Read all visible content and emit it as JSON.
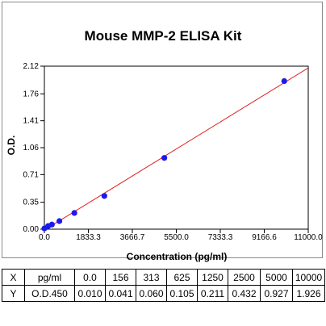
{
  "chart_data": {
    "type": "scatter",
    "title": "Mouse MMP-2 ELISA Kit",
    "xlabel": "Concentration (pg/ml)",
    "ylabel": "O.D.",
    "xlim": [
      0,
      11000
    ],
    "ylim": [
      0,
      2.12
    ],
    "x_ticks": [
      "0.0",
      "1833.3",
      "3666.7",
      "5500.0",
      "7333.3",
      "9166.6",
      "11000.0"
    ],
    "y_ticks": [
      "0.00",
      "0.35",
      "0.71",
      "1.06",
      "1.41",
      "1.76",
      "2.12"
    ],
    "grid": false,
    "series": [
      {
        "x": [
          0,
          156,
          313,
          625,
          1250,
          2500,
          5000,
          10000
        ],
        "y": [
          0.01,
          0.041,
          0.06,
          0.105,
          0.211,
          0.432,
          0.927,
          1.926
        ],
        "marker_color": "#1a1aee",
        "fit_line_color": "#e02020"
      }
    ]
  },
  "table": {
    "rows": [
      {
        "head": "X",
        "unit": "pg/ml",
        "values": [
          "0.0",
          "156",
          "313",
          "625",
          "1250",
          "2500",
          "5000",
          "10000"
        ]
      },
      {
        "head": "Y",
        "unit": "O.D.450",
        "values": [
          "0.010",
          "0.041",
          "0.060",
          "0.105",
          "0.211",
          "0.432",
          "0.927",
          "1.926"
        ]
      }
    ]
  }
}
